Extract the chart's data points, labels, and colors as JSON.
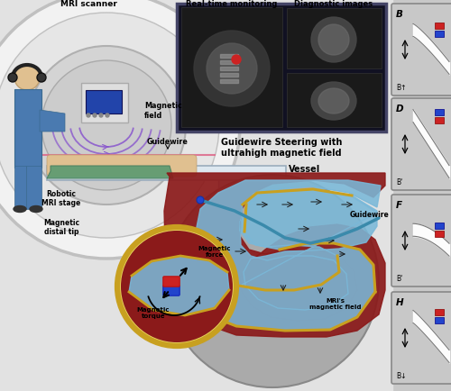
{
  "bg_color": "#c8c8c8",
  "scanner_text": "MRI scanner",
  "guidewire_text": "Guidewire",
  "magnetic_field_text": "Magnetic\nfield",
  "robotic_text": "Robotic\nMRI stage",
  "distal_tip_text": "Magnetic\ndistal tip",
  "realtime_text": "Real-time monitoring",
  "diagnostic_text": "Diagnostic images",
  "steering_text": "Guidewire Steering with\nultrahigh magnetic field",
  "vessel_text": "Vessel",
  "guidewire2_text": "Guidewire",
  "mag_force_text": "Magnetic\nforce",
  "mag_torque_text": "Magnetic\ntorque",
  "mri_field_text": "MRI's\nmagnetic field",
  "panel_labels": [
    "B",
    "D",
    "F",
    "H"
  ],
  "b_labels": [
    "B↑",
    "B'",
    "B'",
    "B↓"
  ],
  "vessel_red": "#8B1A1A",
  "vessel_gold": "#c8a020",
  "lumen_blue": "#7ab8d8",
  "magnet_red": "#cc2222",
  "magnet_blue": "#2244cc",
  "blue_scrubs": "#4a7ab0",
  "green_drape": "#5a9a70",
  "screen_blue": "#2244aa",
  "purple_field": "#8855cc",
  "pink_line": "#dd6688"
}
